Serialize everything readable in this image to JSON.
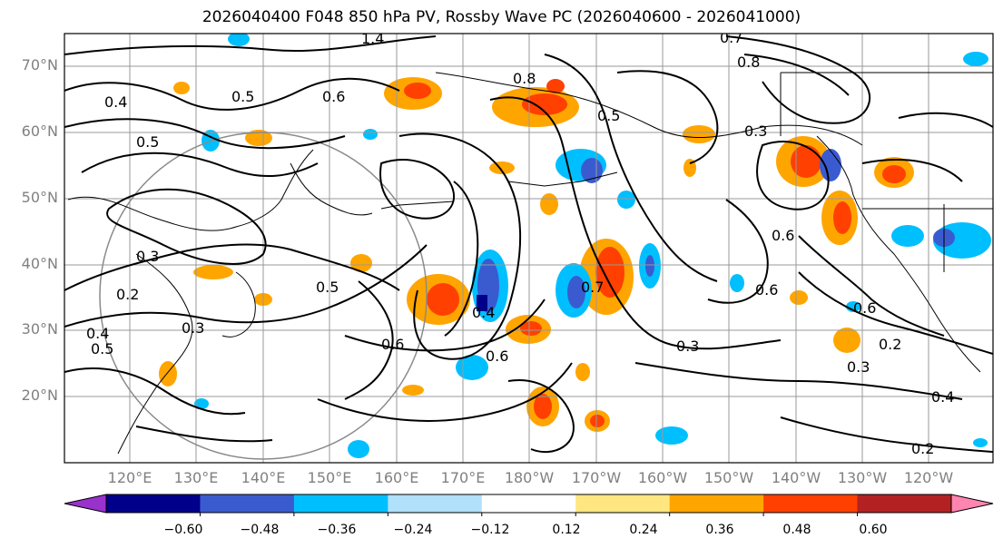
{
  "title": "2026040400 F048 850 hPa PV, Rossby Wave PC (2026040600 - 2026041000)",
  "lat_labels": [
    "70°N",
    "60°N",
    "50°N",
    "40°N",
    "30°N",
    "20°N"
  ],
  "lon_labels": [
    "120°E",
    "130°E",
    "140°E",
    "150°E",
    "160°E",
    "170°E",
    "180°W",
    "170°W",
    "160°W",
    "150°W",
    "140°W",
    "130°W",
    "120°W"
  ],
  "colorbar": {
    "ticks": [
      "−0.60",
      "−0.48",
      "−0.36",
      "−0.24",
      "−0.12",
      "0.12",
      "0.24",
      "0.36",
      "0.48",
      "0.60"
    ],
    "colors": [
      "#9932cc",
      "#00008b",
      "#3a5bd0",
      "#00bfff",
      "#b0e0fa",
      "#ffffff",
      "#ffe680",
      "#ffa500",
      "#ff4000",
      "#b22222",
      "#ff85b0"
    ]
  },
  "contour_labels": [
    "1.4",
    "0.7",
    "0.8",
    "0.6",
    "0.5",
    "0.4",
    "0.3",
    "0.2",
    "0.5",
    "0.6",
    "0.5",
    "0.4",
    "0.3",
    "0.6",
    "0.5",
    "0.3",
    "0.6",
    "0.3",
    "0.2",
    "0.3",
    "0.4",
    "0.2",
    "0.7",
    "0.6",
    "0.5",
    "0.4",
    "0.6",
    "0.8"
  ]
}
